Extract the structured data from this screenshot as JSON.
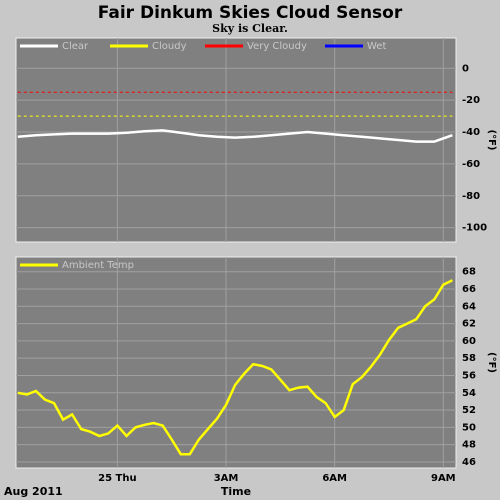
{
  "title": "Fair Dinkum Skies Cloud Sensor",
  "subtitle": "Sky is Clear.",
  "date_label": "Aug 2011",
  "chart_data": [
    {
      "type": "line",
      "y_label": "(°F)",
      "grid": true,
      "legend": "top-left",
      "xlim": [
        -2.8,
        9.35
      ],
      "ylim": [
        -109,
        19
      ],
      "xticks": [
        0,
        3,
        6,
        9
      ],
      "yticks": [
        0,
        -20,
        -40,
        -60,
        -80,
        -100
      ],
      "x": [
        -2.75,
        -2.25,
        -1.75,
        -1.25,
        -0.75,
        -0.25,
        0.25,
        0.75,
        1.25,
        1.75,
        2.25,
        2.75,
        3.25,
        3.75,
        4.25,
        4.75,
        5.25,
        5.75,
        6.25,
        6.75,
        7.25,
        7.75,
        8.25,
        8.75,
        9.25
      ],
      "series": [
        {
          "name": "Clear",
          "color": "#ffffff",
          "style": "solid",
          "values": [
            -43,
            -42,
            -41.5,
            -41,
            -41,
            -41,
            -40.5,
            -39.5,
            -39,
            -40.5,
            -42,
            -43,
            -43.5,
            -43,
            -42,
            -41,
            -40,
            -41,
            -42,
            -43,
            -44,
            -45,
            -46,
            -46,
            -42
          ]
        },
        {
          "name": "Cloudy",
          "color": "#ffff00",
          "style": "dashed",
          "values": [
            -30,
            -30,
            -30,
            -30,
            -30,
            -30,
            -30,
            -30,
            -30,
            -30,
            -30,
            -30,
            -30,
            -30,
            -30,
            -30,
            -30,
            -30,
            -30,
            -30,
            -30,
            -30,
            -30,
            -30,
            -30
          ]
        },
        {
          "name": "Very Cloudy",
          "color": "#ff0000",
          "style": "dashed",
          "values": [
            -15,
            -15,
            -15,
            -15,
            -15,
            -15,
            -15,
            -15,
            -15,
            -15,
            -15,
            -15,
            -15,
            -15,
            -15,
            -15,
            -15,
            -15,
            -15,
            -15,
            -15,
            -15,
            -15,
            -15,
            -15
          ]
        },
        {
          "name": "Wet",
          "color": "#0000ff",
          "style": "solid",
          "values": [
            null,
            null,
            null,
            null,
            null,
            null,
            null,
            null,
            null,
            null,
            null,
            null,
            null,
            null,
            null,
            null,
            null,
            null,
            null,
            null,
            null,
            null,
            null,
            null,
            null
          ]
        }
      ]
    },
    {
      "type": "line",
      "x_label": "Time",
      "y_label": "(°F)",
      "grid": true,
      "legend": "top-left",
      "xlim": [
        -2.8,
        9.35
      ],
      "ylim": [
        45.3,
        69.7
      ],
      "xticks": [
        {
          "value": 0,
          "label": "25 Thu"
        },
        {
          "value": 3,
          "label": "3AM"
        },
        {
          "value": 6,
          "label": "6AM"
        },
        {
          "value": 9,
          "label": "9AM"
        }
      ],
      "yticks": [
        46,
        48,
        50,
        52,
        54,
        56,
        58,
        60,
        62,
        64,
        66,
        68
      ],
      "x": [
        -2.75,
        -2.5,
        -2.25,
        -2,
        -1.75,
        -1.5,
        -1.25,
        -1,
        -0.75,
        -0.5,
        -0.25,
        0,
        0.25,
        0.5,
        0.75,
        1,
        1.25,
        1.5,
        1.75,
        2,
        2.25,
        2.5,
        2.75,
        3,
        3.25,
        3.5,
        3.75,
        4,
        4.25,
        4.5,
        4.75,
        5,
        5.25,
        5.5,
        5.75,
        6,
        6.25,
        6.5,
        6.75,
        7,
        7.25,
        7.5,
        7.75,
        8,
        8.25,
        8.5,
        8.75,
        9,
        9.25
      ],
      "series": [
        {
          "name": "Ambient Temp",
          "color": "#ffff00",
          "style": "solid",
          "values": [
            54,
            53.8,
            54.2,
            53.2,
            52.8,
            50.9,
            51.5,
            49.8,
            49.5,
            49,
            49.3,
            50.2,
            49,
            50,
            50.3,
            50.5,
            50.2,
            48.6,
            46.9,
            46.9,
            48.6,
            49.8,
            51,
            52.6,
            54.9,
            56.2,
            57.3,
            57.1,
            56.7,
            55.5,
            54.3,
            54.6,
            54.7,
            53.5,
            52.8,
            51.2,
            52,
            55,
            55.8,
            57,
            58.4,
            60.1,
            61.5,
            62,
            62.5,
            64,
            64.8,
            66.5,
            67
          ]
        }
      ]
    }
  ]
}
